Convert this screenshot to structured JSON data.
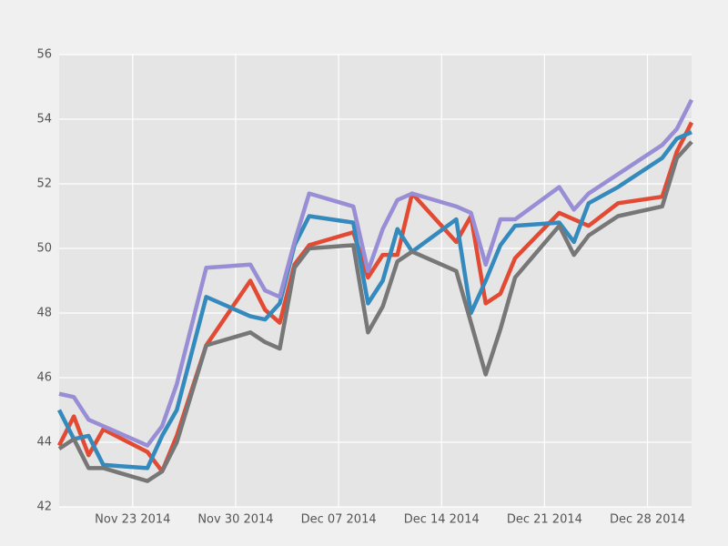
{
  "chart_data": {
    "type": "line",
    "x": [
      "2014-11-18",
      "2014-11-19",
      "2014-11-20",
      "2014-11-21",
      "2014-11-24",
      "2014-11-25",
      "2014-11-26",
      "2014-11-28",
      "2014-12-01",
      "2014-12-02",
      "2014-12-03",
      "2014-12-04",
      "2014-12-05",
      "2014-12-08",
      "2014-12-09",
      "2014-12-10",
      "2014-12-11",
      "2014-12-12",
      "2014-12-15",
      "2014-12-16",
      "2014-12-17",
      "2014-12-18",
      "2014-12-19",
      "2014-12-22",
      "2014-12-23",
      "2014-12-24",
      "2014-12-26",
      "2014-12-29",
      "2014-12-30",
      "2014-12-31"
    ],
    "series": [
      {
        "color": "#E24A33",
        "values": [
          43.9,
          44.8,
          43.6,
          44.4,
          43.7,
          43.1,
          44.2,
          47.0,
          49.0,
          48.1,
          47.7,
          49.5,
          50.1,
          50.5,
          49.1,
          49.8,
          49.8,
          51.7,
          50.2,
          51.0,
          48.3,
          48.6,
          49.7,
          51.1,
          50.9,
          50.7,
          51.4,
          51.6,
          53.0,
          53.9
        ]
      },
      {
        "color": "#348ABD",
        "values": [
          45.0,
          44.1,
          44.2,
          43.3,
          43.2,
          44.2,
          45.0,
          48.5,
          47.9,
          47.8,
          48.3,
          50.1,
          51.0,
          50.8,
          48.3,
          49.0,
          50.6,
          49.9,
          50.9,
          48.0,
          49.0,
          50.1,
          50.7,
          50.8,
          50.2,
          51.4,
          51.9,
          52.8,
          53.4,
          53.6
        ]
      },
      {
        "color": "#988ED5",
        "values": [
          45.5,
          45.4,
          44.7,
          44.5,
          43.9,
          44.5,
          45.8,
          49.4,
          49.5,
          48.7,
          48.5,
          50.2,
          51.7,
          51.3,
          49.3,
          50.6,
          51.5,
          51.7,
          51.3,
          51.1,
          49.5,
          50.9,
          50.9,
          51.9,
          51.2,
          51.7,
          52.3,
          53.2,
          53.7,
          54.6
        ]
      },
      {
        "color": "#777777",
        "values": [
          43.8,
          44.1,
          43.2,
          43.2,
          42.8,
          43.1,
          44.0,
          47.0,
          47.4,
          47.1,
          46.9,
          49.4,
          50.0,
          50.1,
          47.4,
          48.2,
          49.6,
          49.9,
          49.3,
          47.7,
          46.1,
          47.5,
          49.1,
          50.7,
          49.8,
          50.4,
          51.0,
          51.3,
          52.8,
          53.3
        ]
      }
    ],
    "xlim": [
      "2014-11-18",
      "2014-12-31"
    ],
    "xticks": [
      {
        "value": "2014-11-23",
        "label": "Nov 23 2014"
      },
      {
        "value": "2014-11-30",
        "label": "Nov 30 2014"
      },
      {
        "value": "2014-12-07",
        "label": "Dec 07 2014"
      },
      {
        "value": "2014-12-14",
        "label": "Dec 14 2014"
      },
      {
        "value": "2014-12-21",
        "label": "Dec 21 2014"
      },
      {
        "value": "2014-12-28",
        "label": "Dec 28 2014"
      }
    ],
    "ylim": [
      42,
      56
    ],
    "yticks": [
      42,
      44,
      46,
      48,
      50,
      52,
      54,
      56
    ],
    "grid": true
  }
}
